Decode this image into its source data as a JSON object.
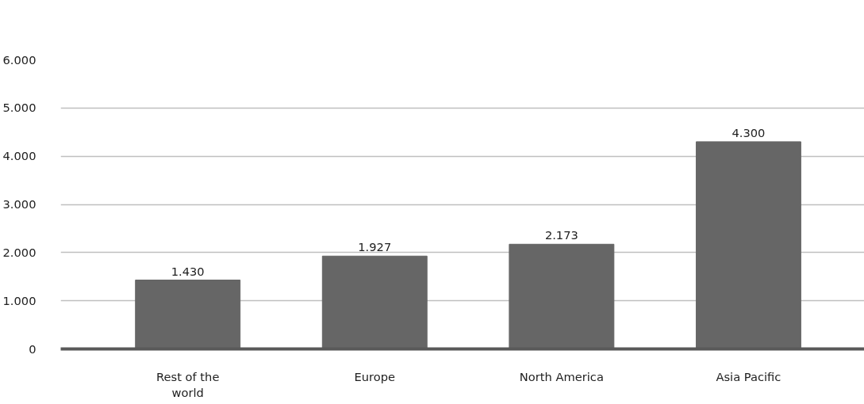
{
  "chart_data": {
    "type": "bar",
    "categories": [
      "Rest of the world",
      "Europe",
      "North America",
      "Asia Pacific"
    ],
    "values": [
      1430,
      1927,
      2173,
      4300
    ],
    "value_labels": [
      "1.430",
      "1.927",
      "2.173",
      "4.300"
    ],
    "color": "#666666",
    "ylim": [
      0,
      6000
    ],
    "yticks": [
      {
        "value": 0,
        "label": "0"
      },
      {
        "value": 1000,
        "label": "1.000"
      },
      {
        "value": 2000,
        "label": "2.000"
      },
      {
        "value": 3000,
        "label": "3.000"
      },
      {
        "value": 4000,
        "label": "4.000"
      },
      {
        "value": 5000,
        "label": "5.000"
      },
      {
        "value": 6000,
        "label": "6.000"
      }
    ],
    "grid": "y"
  }
}
